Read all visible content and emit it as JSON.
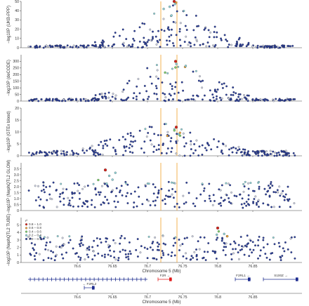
{
  "chart_data": {
    "type": "scatter",
    "description_colors": {
      "ld_bins": [
        "#2b3f9e",
        "#8fd3d8",
        "#7ccf6a",
        "#f2a83b",
        "#d8231b"
      ],
      "axis": "#444444",
      "highlight_line": "#f0a028",
      "gene": "#1d2c8f",
      "gene_hit": "#e01b1b"
    },
    "x_axis": {
      "label": "Chromosome 5 (Mb)",
      "range": [
        76.52,
        76.92
      ],
      "ticks": [
        "76.6",
        "76.65",
        "76.7",
        "76.75",
        "76.8",
        "76.85"
      ],
      "tick_values": [
        76.6,
        76.65,
        76.7,
        76.75,
        76.8,
        76.85
      ]
    },
    "highlight_lines_mb": [
      76.719,
      76.742
    ],
    "panels": [
      {
        "ylabel": "−log10P (UKB-PPP)",
        "ylim": [
          0,
          50
        ],
        "yticks": [
          "0",
          "10",
          "20",
          "30",
          "40",
          "50"
        ],
        "lead": {
          "x": 76.738,
          "y": 52
        }
      },
      {
        "ylabel": "−log10P (deCODE)",
        "ylim": [
          0,
          350
        ],
        "yticks": [
          "0",
          "50",
          "100",
          "150",
          "200",
          "250",
          "300"
        ],
        "lead": {
          "x": 76.74,
          "y": 300
        }
      },
      {
        "ylabel": "−log10P (GTEx blood)",
        "ylim": [
          0,
          20
        ],
        "yticks": [
          "0",
          "5",
          "10",
          "15",
          "20"
        ],
        "lead": {
          "x": 76.741,
          "y": 12
        }
      },
      {
        "ylabel": "−log10P (NephQTL2 GLOM)",
        "ylim": [
          0,
          4
        ],
        "yticks": [
          "0",
          "0.5",
          "1.0",
          "1.5",
          "2.0",
          "2.5",
          "3.0",
          "3.5"
        ],
        "lead": {
          "x": 76.64,
          "y": 3.4
        }
      },
      {
        "ylabel": "−log10P (NephQTL2 TUBE)",
        "ylim": [
          0,
          6
        ],
        "yticks": [
          "0",
          "1",
          "2",
          "3",
          "4",
          "5"
        ],
        "lead": {
          "x": 76.8,
          "y": 4.6
        },
        "legend": {
          "title": "r²",
          "entries": [
            "0.8 – 1.0",
            "0.6 – 0.8",
            "0.4 – 0.6",
            "0.2 – 0.4",
            "0.0 – 0.2"
          ]
        }
      }
    ],
    "genes": [
      {
        "name": "F2R",
        "row": 0,
        "start": 76.715,
        "end": 76.735,
        "strand": "+",
        "hit": true
      },
      {
        "name": "F2RL1",
        "row": 0,
        "start": 76.825,
        "end": 76.847,
        "strand": "+",
        "hit": false
      },
      {
        "name": "S100Z",
        "row": 0,
        "start": 76.865,
        "end": 76.915,
        "strand": "+",
        "hit": false
      },
      {
        "name": "F2RL2",
        "row": 1,
        "start": 76.61,
        "end": 76.625,
        "strand": "−",
        "hit": false
      }
    ],
    "long_gene": {
      "row": 0,
      "start": 76.53,
      "end": 76.7
    }
  }
}
